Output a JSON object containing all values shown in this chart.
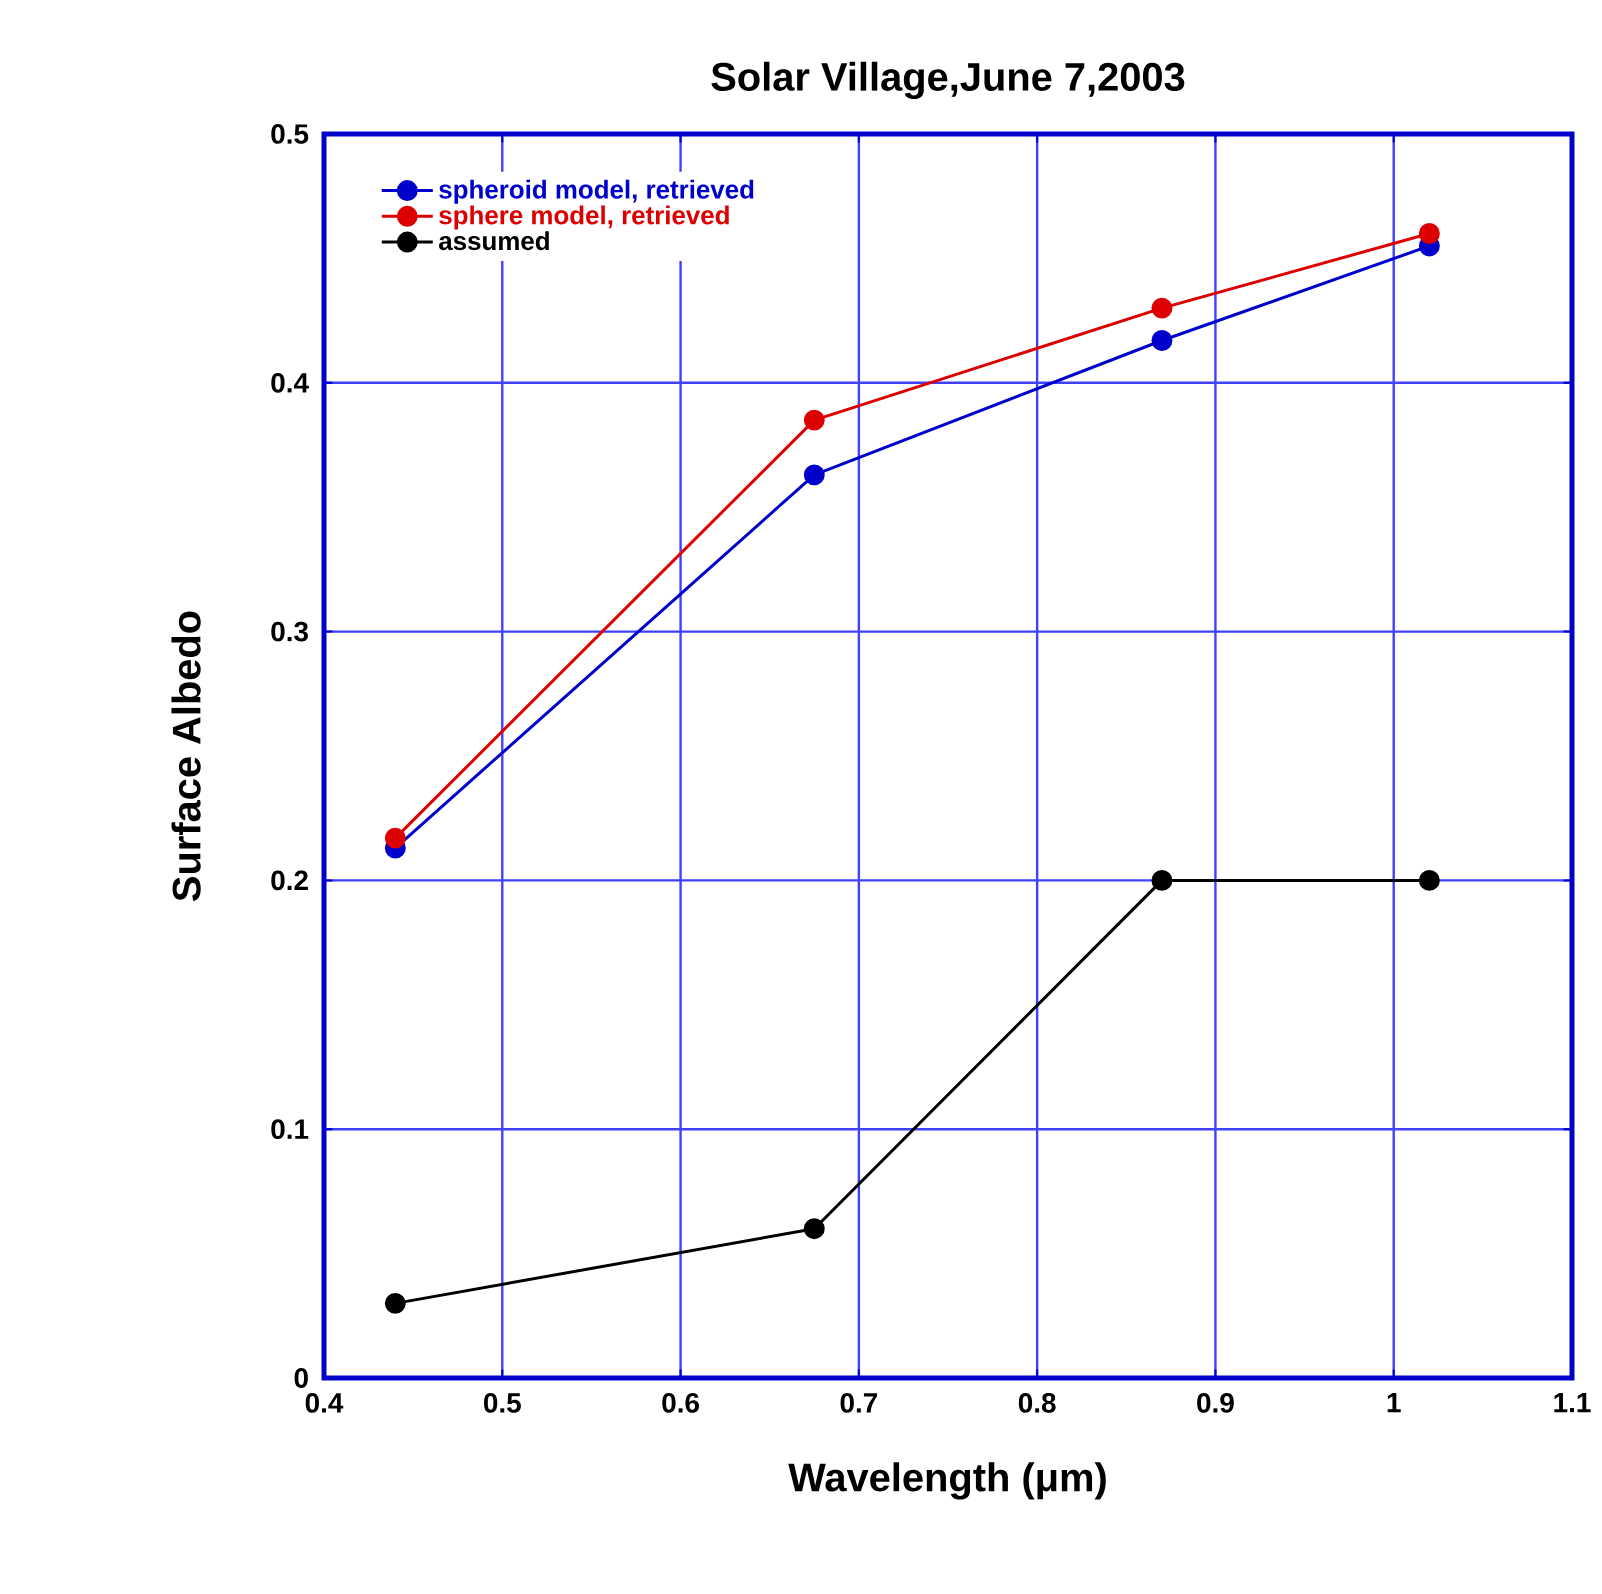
{
  "chart_data": {
    "type": "line",
    "title": "Solar Village,June 7,2003",
    "xlabel": "Wavelength (μm)",
    "ylabel": "Surface Albedo",
    "x": [
      0.44,
      0.675,
      0.87,
      1.02
    ],
    "series": [
      {
        "name": "spheroid model, retrieved",
        "color": "#0000cc",
        "values": [
          0.213,
          0.363,
          0.417,
          0.455
        ]
      },
      {
        "name": "sphere model, retrieved",
        "color": "#dd0000",
        "values": [
          0.217,
          0.385,
          0.43,
          0.46
        ]
      },
      {
        "name": "assumed",
        "color": "#000000",
        "values": [
          0.03,
          0.06,
          0.2,
          0.2
        ]
      }
    ],
    "xlim": [
      0.4,
      1.1
    ],
    "ylim": [
      0,
      0.5
    ],
    "xticks": [
      0.4,
      0.5,
      0.6,
      0.7,
      0.8,
      0.9,
      1,
      1.1
    ],
    "yticks": [
      0,
      0.1,
      0.2,
      0.3,
      0.4,
      0.5
    ],
    "grid": true,
    "legend": "top left",
    "marker": "circle",
    "line_style": "solid"
  }
}
